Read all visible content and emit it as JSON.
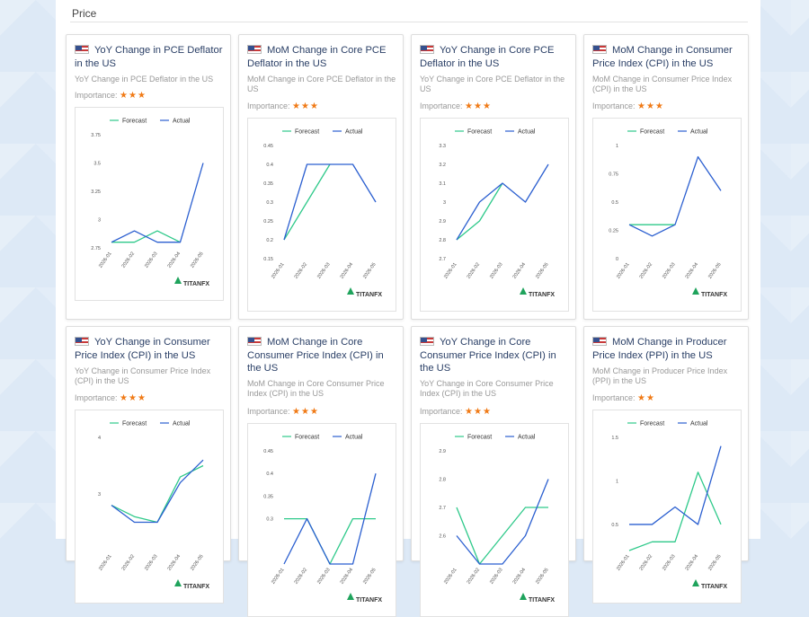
{
  "section": {
    "title": "Price"
  },
  "colors": {
    "forecast": "#2ec98a",
    "actual": "#2b5fd0",
    "star": "#f07a16",
    "logo": "#1fa35c"
  },
  "legend": {
    "forecast": "Forecast",
    "actual": "Actual"
  },
  "logo": "TITANFX",
  "cards": [
    {
      "title": "YoY Change in PCE Deflator in the US",
      "subtitle": "YoY Change in PCE Deflator in the US",
      "importance_label": "Importance:",
      "stars": "★★★",
      "chart_data": {
        "type": "line",
        "x": [
          "2026-01",
          "2026-02",
          "2026-03",
          "2026-04",
          "2026-05"
        ],
        "ylim": [
          2.75,
          3.75
        ],
        "yticks": [
          2.75,
          3,
          3.25,
          3.5,
          3.75
        ],
        "ytick_labels": [
          "2.75",
          "3",
          "3.25",
          "3.5",
          "3.75"
        ],
        "series": [
          {
            "name": "Forecast",
            "values": [
              2.8,
              2.8,
              2.9,
              2.8,
              null
            ]
          },
          {
            "name": "Actual",
            "values": [
              2.8,
              2.9,
              2.8,
              2.8,
              3.5
            ]
          }
        ]
      }
    },
    {
      "title": "MoM Change in Core PCE Deflator in the US",
      "subtitle": "MoM Change in Core PCE Deflator in the US",
      "importance_label": "Importance:",
      "stars": "★★★",
      "chart_data": {
        "type": "line",
        "x": [
          "2026-01",
          "2026-02",
          "2026-03",
          "2026-04",
          "2026-05"
        ],
        "ylim": [
          0.15,
          0.45
        ],
        "yticks": [
          0.15,
          0.2,
          0.25,
          0.3,
          0.35,
          0.4,
          0.45
        ],
        "ytick_labels": [
          "0.15",
          "0.2",
          "0.25",
          "0.3",
          "0.35",
          "0.4",
          "0.45"
        ],
        "series": [
          {
            "name": "Forecast",
            "values": [
              0.2,
              0.3,
              0.4,
              null,
              null
            ]
          },
          {
            "name": "Actual",
            "values": [
              0.2,
              0.4,
              0.4,
              0.4,
              0.3
            ]
          }
        ]
      }
    },
    {
      "title": "YoY Change in Core PCE Deflator in the US",
      "subtitle": "YoY Change in Core PCE Deflator in the US",
      "importance_label": "Importance:",
      "stars": "★★★",
      "chart_data": {
        "type": "line",
        "x": [
          "2026-01",
          "2026-02",
          "2026-03",
          "2026-04",
          "2026-05"
        ],
        "ylim": [
          2.7,
          3.3
        ],
        "yticks": [
          2.7,
          2.8,
          2.9,
          3,
          3.1,
          3.2,
          3.3
        ],
        "ytick_labels": [
          "2.7",
          "2.8",
          "2.9",
          "3",
          "3.1",
          "3.2",
          "3.3"
        ],
        "series": [
          {
            "name": "Forecast",
            "values": [
              2.8,
              2.9,
              3.1,
              null,
              null
            ]
          },
          {
            "name": "Actual",
            "values": [
              2.8,
              3.0,
              3.1,
              3.0,
              3.2
            ]
          }
        ]
      }
    },
    {
      "title": "MoM Change in Consumer Price Index (CPI) in the US",
      "subtitle": "MoM Change in Consumer Price Index (CPI) in the US",
      "importance_label": "Importance:",
      "stars": "★★★",
      "chart_data": {
        "type": "line",
        "x": [
          "2026-01",
          "2026-02",
          "2026-03",
          "2026-04",
          "2026-05"
        ],
        "ylim": [
          0,
          1
        ],
        "yticks": [
          0,
          0.25,
          0.5,
          0.75,
          1
        ],
        "ytick_labels": [
          "0",
          "0.25",
          "0.5",
          "0.75",
          "1"
        ],
        "series": [
          {
            "name": "Forecast",
            "values": [
              0.3,
              0.3,
              0.3,
              null,
              null
            ]
          },
          {
            "name": "Actual",
            "values": [
              0.3,
              0.2,
              0.3,
              0.9,
              0.6
            ]
          }
        ]
      }
    },
    {
      "title": "YoY Change in Consumer Price Index (CPI) in the US",
      "subtitle": "YoY Change in Consumer Price Index (CPI) in the US",
      "importance_label": "Importance:",
      "stars": "★★★",
      "chart_data": {
        "type": "line",
        "x": [
          "2026-01",
          "2026-02",
          "2026-03",
          "2026-04",
          "2026-05"
        ],
        "ylim": [
          2,
          4
        ],
        "yticks": [
          3,
          4
        ],
        "ytick_labels": [
          "3",
          "4"
        ],
        "series": [
          {
            "name": "Forecast",
            "values": [
              2.8,
              2.6,
              2.5,
              3.3,
              3.5
            ]
          },
          {
            "name": "Actual",
            "values": [
              2.8,
              2.5,
              2.5,
              3.2,
              3.6
            ]
          }
        ]
      }
    },
    {
      "title": "MoM Change in Core Consumer Price Index (CPI) in the US",
      "subtitle": "MoM Change in Core Consumer Price Index (CPI) in the US",
      "importance_label": "Importance:",
      "stars": "★★★",
      "chart_data": {
        "type": "line",
        "x": [
          "2026-01",
          "2026-02",
          "2026-03",
          "2026-04",
          "2026-05"
        ],
        "ylim": [
          0.2,
          0.45
        ],
        "yticks": [
          0.3,
          0.35,
          0.4,
          0.45
        ],
        "ytick_labels": [
          "0.3",
          "0.35",
          "0.4",
          "0.45"
        ],
        "series": [
          {
            "name": "Forecast",
            "values": [
              0.3,
              0.3,
              0.2,
              0.3,
              0.3
            ]
          },
          {
            "name": "Actual",
            "values": [
              0.2,
              0.3,
              0.2,
              0.2,
              0.4
            ]
          }
        ]
      }
    },
    {
      "title": "YoY Change in Core Consumer Price Index (CPI) in the US",
      "subtitle": "YoY Change in Core Consumer Price Index (CPI) in the US",
      "importance_label": "Importance:",
      "stars": "★★★",
      "chart_data": {
        "type": "line",
        "x": [
          "2026-01",
          "2026-02",
          "2026-03",
          "2026-04",
          "2026-05"
        ],
        "ylim": [
          2.5,
          2.9
        ],
        "yticks": [
          2.6,
          2.7,
          2.8,
          2.9
        ],
        "ytick_labels": [
          "2.6",
          "2.7",
          "2.8",
          "2.9"
        ],
        "series": [
          {
            "name": "Forecast",
            "values": [
              2.7,
              2.5,
              2.6,
              2.7,
              2.7
            ]
          },
          {
            "name": "Actual",
            "values": [
              2.6,
              2.5,
              2.5,
              2.6,
              2.8
            ]
          }
        ]
      }
    },
    {
      "title": "MoM Change in Producer Price Index (PPI) in the US",
      "subtitle": "MoM Change in Producer Price Index (PPI) in the US",
      "importance_label": "Importance:",
      "stars": "★★",
      "chart_data": {
        "type": "line",
        "x": [
          "2026-01",
          "2026-02",
          "2026-03",
          "2026-04",
          "2026-05"
        ],
        "ylim": [
          0.2,
          1.5
        ],
        "yticks": [
          0.5,
          1,
          1.5
        ],
        "ytick_labels": [
          "0.5",
          "1",
          "1.5"
        ],
        "series": [
          {
            "name": "Forecast",
            "values": [
              0.2,
              0.3,
              0.3,
              1.1,
              0.5
            ]
          },
          {
            "name": "Actual",
            "values": [
              0.5,
              0.5,
              0.7,
              0.5,
              1.4
            ]
          }
        ]
      }
    }
  ]
}
